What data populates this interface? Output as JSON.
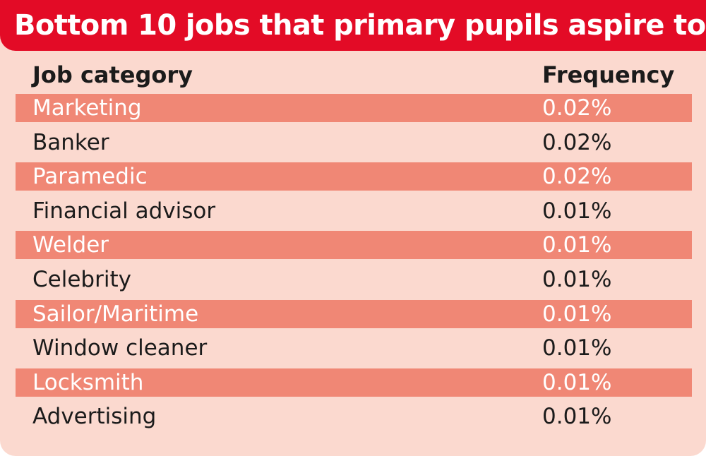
{
  "chart_data": {
    "type": "table",
    "title": "Bottom 10 jobs that primary pupils aspire to",
    "columns": [
      "Job category",
      "Frequency"
    ],
    "rows": [
      {
        "category": "Marketing",
        "frequency": "0.02%"
      },
      {
        "category": "Banker",
        "frequency": "0.02%"
      },
      {
        "category": "Paramedic",
        "frequency": "0.02%"
      },
      {
        "category": "Financial advisor",
        "frequency": "0.01%"
      },
      {
        "category": "Welder",
        "frequency": "0.01%"
      },
      {
        "category": "Celebrity",
        "frequency": "0.01%"
      },
      {
        "category": "Sailor/Maritime",
        "frequency": "0.01%"
      },
      {
        "category": "Window cleaner",
        "frequency": "0.01%"
      },
      {
        "category": "Locksmith",
        "frequency": "0.01%"
      },
      {
        "category": "Advertising",
        "frequency": "0.01%"
      }
    ]
  },
  "colors": {
    "header_bg": "#e30b26",
    "card_bg": "#fbd9cf",
    "stripe": "#f08775",
    "text_dark": "#1b1b1b",
    "text_light": "#ffffff"
  }
}
